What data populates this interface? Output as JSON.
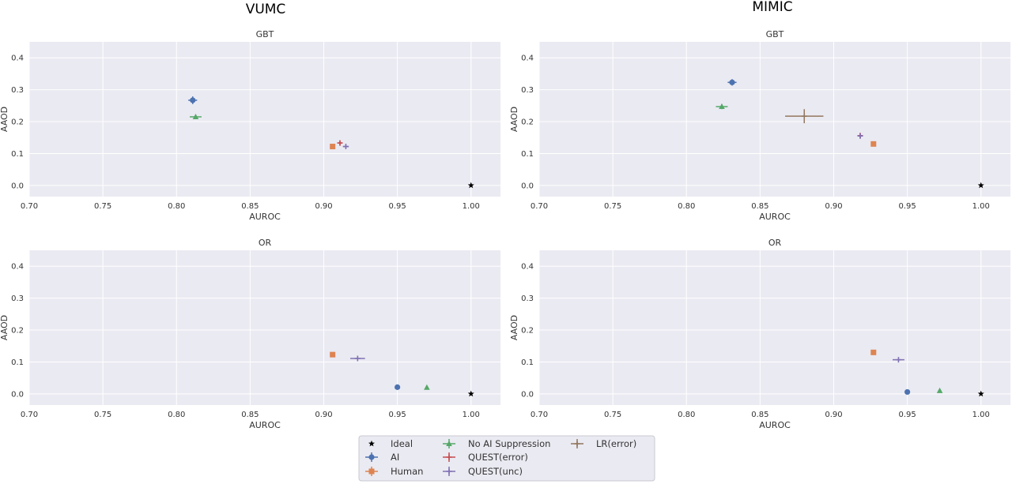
{
  "figure": {
    "column_titles": [
      "VUMC",
      "MIMIC"
    ],
    "legend": [
      {
        "label": "Ideal",
        "marker": "star",
        "color": "#000000"
      },
      {
        "label": "AI",
        "marker": "circle",
        "color": "#4c72b0"
      },
      {
        "label": "Human",
        "marker": "square",
        "color": "#dd8452"
      },
      {
        "label": "No AI Suppression",
        "marker": "triangle",
        "color": "#55a868"
      },
      {
        "label": "QUEST(error)",
        "marker": "plus",
        "color": "#c44e52"
      },
      {
        "label": "QUEST(unc)",
        "marker": "plus",
        "color": "#8172b3"
      },
      {
        "label": "LR(error)",
        "marker": "plus",
        "color": "#937860"
      }
    ]
  },
  "chart_data": [
    {
      "type": "scatter",
      "column": "VUMC",
      "title": "GBT",
      "xlabel": "AUROC",
      "ylabel": "AAOD",
      "xlim": [
        0.7,
        1.02
      ],
      "ylim": [
        -0.035,
        0.45
      ],
      "xticks": [
        "0.70",
        "0.75",
        "0.80",
        "0.85",
        "0.90",
        "0.95",
        "1.00"
      ],
      "yticks": [
        "0.0",
        "0.1",
        "0.2",
        "0.3",
        "0.4"
      ],
      "grid": true,
      "points": [
        {
          "series": "AI",
          "x": 0.811,
          "y": 0.267,
          "xerr": 0.003,
          "yerr": 0.012
        },
        {
          "series": "No AI Suppression",
          "x": 0.813,
          "y": 0.215,
          "xerr": 0.004,
          "yerr": 0.005
        },
        {
          "series": "Human",
          "x": 0.906,
          "y": 0.122,
          "xerr": 0.001,
          "yerr": 0.006
        },
        {
          "series": "QUEST(error)",
          "x": 0.911,
          "y": 0.133,
          "xerr": 0.001,
          "yerr": 0.007
        },
        {
          "series": "QUEST(unc)",
          "x": 0.915,
          "y": 0.122,
          "xerr": 0.002,
          "yerr": 0.004
        },
        {
          "series": "Ideal",
          "x": 1.0,
          "y": 0.0,
          "xerr": 0,
          "yerr": 0
        }
      ]
    },
    {
      "type": "scatter",
      "column": "MIMIC",
      "title": "GBT",
      "xlabel": "AUROC",
      "ylabel": "AAOD",
      "xlim": [
        0.7,
        1.02
      ],
      "ylim": [
        -0.035,
        0.45
      ],
      "xticks": [
        "0.70",
        "0.75",
        "0.80",
        "0.85",
        "0.90",
        "0.95",
        "1.00"
      ],
      "yticks": [
        "0.0",
        "0.1",
        "0.2",
        "0.3",
        "0.4"
      ],
      "grid": true,
      "points": [
        {
          "series": "AI",
          "x": 0.831,
          "y": 0.323,
          "xerr": 0.003,
          "yerr": 0.01
        },
        {
          "series": "No AI Suppression",
          "x": 0.824,
          "y": 0.247,
          "xerr": 0.004,
          "yerr": 0.008
        },
        {
          "series": "Human",
          "x": 0.927,
          "y": 0.13,
          "xerr": 0.001,
          "yerr": 0.005
        },
        {
          "series": "QUEST(error)",
          "x": 0.918,
          "y": 0.156,
          "xerr": 0.001,
          "yerr": 0.007
        },
        {
          "series": "QUEST(unc)",
          "x": 0.918,
          "y": 0.155,
          "xerr": 0.001,
          "yerr": 0.004
        },
        {
          "series": "LR(error)",
          "x": 0.88,
          "y": 0.217,
          "xerr": 0.013,
          "yerr": 0.022
        },
        {
          "series": "Ideal",
          "x": 1.0,
          "y": 0.0,
          "xerr": 0,
          "yerr": 0
        }
      ]
    },
    {
      "type": "scatter",
      "column": "VUMC",
      "title": "OR",
      "xlabel": "AUROC",
      "ylabel": "AAOD",
      "xlim": [
        0.7,
        1.02
      ],
      "ylim": [
        -0.035,
        0.45
      ],
      "xticks": [
        "0.70",
        "0.75",
        "0.80",
        "0.85",
        "0.90",
        "0.95",
        "1.00"
      ],
      "yticks": [
        "0.0",
        "0.1",
        "0.2",
        "0.3",
        "0.4"
      ],
      "grid": true,
      "points": [
        {
          "series": "Human",
          "x": 0.906,
          "y": 0.123,
          "xerr": 0.001,
          "yerr": 0.006
        },
        {
          "series": "QUEST(unc)",
          "x": 0.923,
          "y": 0.111,
          "xerr": 0.005,
          "yerr": 0.003
        },
        {
          "series": "AI",
          "x": 0.95,
          "y": 0.021,
          "xerr": 0.001,
          "yerr": 0.003
        },
        {
          "series": "No AI Suppression",
          "x": 0.97,
          "y": 0.02,
          "xerr": 0.001,
          "yerr": 0.003
        },
        {
          "series": "Ideal",
          "x": 1.0,
          "y": 0.0,
          "xerr": 0,
          "yerr": 0
        }
      ]
    },
    {
      "type": "scatter",
      "column": "MIMIC",
      "title": "OR",
      "xlabel": "AUROC",
      "ylabel": "AAOD",
      "xlim": [
        0.7,
        1.02
      ],
      "ylim": [
        -0.035,
        0.45
      ],
      "xticks": [
        "0.70",
        "0.75",
        "0.80",
        "0.85",
        "0.90",
        "0.95",
        "1.00"
      ],
      "yticks": [
        "0.0",
        "0.1",
        "0.2",
        "0.3",
        "0.4"
      ],
      "grid": true,
      "points": [
        {
          "series": "Human",
          "x": 0.927,
          "y": 0.13,
          "xerr": 0.001,
          "yerr": 0.004
        },
        {
          "series": "QUEST(unc)",
          "x": 0.944,
          "y": 0.107,
          "xerr": 0.004,
          "yerr": 0.003
        },
        {
          "series": "AI",
          "x": 0.95,
          "y": 0.006,
          "xerr": 0.001,
          "yerr": 0.002
        },
        {
          "series": "No AI Suppression",
          "x": 0.972,
          "y": 0.01,
          "xerr": 0.001,
          "yerr": 0.002
        },
        {
          "series": "Ideal",
          "x": 1.0,
          "y": 0.0,
          "xerr": 0,
          "yerr": 0
        }
      ]
    }
  ]
}
